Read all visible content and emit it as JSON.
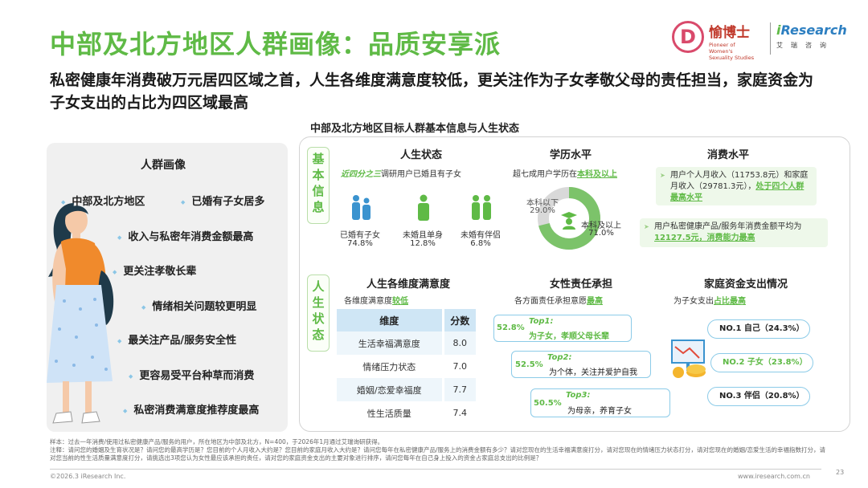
{
  "title": "中部及北方地区人群画像：品质安享派",
  "subtitle": "私密健康年消费破万元居四区域之首，人生各维度满意度较低，更关注作为子女孝敬父母的责任担当，家庭资金为子女支出的占比为四区域最高",
  "logos": {
    "partner_name": "愉博士",
    "partner_tag": "Pioneer of Women's Sexuality Studies",
    "ir_name_prefix": "i",
    "ir_name": "Research",
    "ir_cn": "艾瑞咨询"
  },
  "center_title": "中部及北方地区目标人群基本信息与人生状态",
  "left_panel": {
    "title": "人群画像",
    "region": "中部及北方地区",
    "region_tag": "已婚有子女居多",
    "items": [
      "收入与私密年消费金额最高",
      "更关注孝敬长辈",
      "情绪相关问题较更明显",
      "最关注产品/服务安全性",
      "更容易受平台种草而消费",
      "私密消费满意度推荐度最高"
    ]
  },
  "basic": {
    "tab": [
      "基",
      "本",
      "信",
      "息"
    ],
    "life_status": {
      "header": "人生状态",
      "note_em": "近四分之三",
      "note_rest": "调研用户已婚且有子女",
      "items": [
        {
          "label": "已婚有子女",
          "pct": "74.8%",
          "icon": "family-icon"
        },
        {
          "label": "未婚且单身",
          "pct": "12.8%",
          "icon": "single-person-icon"
        },
        {
          "label": "未婚有伴侣",
          "pct": "6.8%",
          "icon": "couple-icon"
        }
      ]
    },
    "education": {
      "header": "学历水平",
      "note_pre": "超七成用户学历在",
      "note_em": "本科及以上",
      "below_label": "本科以下",
      "below_pct": "29.0%",
      "above_label": "本科及以上",
      "above_pct": "71.0%",
      "colors": {
        "above": "#7cc36a",
        "below": "#d9d9d9"
      }
    },
    "consumption": {
      "header": "消费水平",
      "box1_pre": "用户个人月收入（11753.8元）和家庭月收入（29781.3元），",
      "box1_em": "处于四个人群最高水平",
      "box2_pre": "用户私密健康产品/服务年消费金额平均为",
      "box2_em": "12127.5元，消费能力最高"
    }
  },
  "life": {
    "tab": [
      "人",
      "生",
      "状",
      "态"
    ],
    "satisfaction": {
      "header": "人生各维度满意度",
      "note_pre": "各维度满意度",
      "note_em": "较低",
      "col_dim": "维度",
      "col_score": "分数",
      "rows": [
        {
          "dim": "生活幸福满意度",
          "score": "8.0"
        },
        {
          "dim": "情绪压力状态",
          "score": "7.0"
        },
        {
          "dim": "婚姻/恋爱幸福度",
          "score": "7.7"
        },
        {
          "dim": "性生活质量",
          "score": "7.4"
        }
      ]
    },
    "responsibility": {
      "header": "女性责任承担",
      "note_pre": "各方面责任承担意愿",
      "note_em": "最高",
      "tops": [
        {
          "pct": "52.8%",
          "tag": "Top1:",
          "text": "为子女，孝顺父母长辈",
          "green": true
        },
        {
          "pct": "52.5%",
          "tag": "Top2:",
          "text": "为个体，关注并爱护自我",
          "green": false
        },
        {
          "pct": "50.5%",
          "tag": "Top3:",
          "text": "为母亲，养育子女",
          "green": false
        }
      ]
    },
    "family_funds": {
      "header": "家庭资金支出情况",
      "note_pre": "为子女支出",
      "note_em": "占比最高",
      "ranks": [
        {
          "text": "NO.1  自己（24.3%）",
          "highlight": false
        },
        {
          "text": "NO.2  子女（23.8%）",
          "highlight": true
        },
        {
          "text": "NO.3  伴侣（20.8%）",
          "highlight": false
        }
      ]
    }
  },
  "footnote": "样本：过去一年消费/使用过私密健康产品/服务的用户，所在地区为中部及北方，N=400，于2026年1月通过艾瑞询研获得。\n注释：请问您的婚姻及生育状况是？请问您的最高学历是？您目前的个人月收入大约是？您目前的家庭月收入大约是？请问您每年在私密健康产品/服务上的消费金额有多少？请对您现在的生活幸福满意度打分，请对您现在的情绪压力状态打分，请对您现在的婚姻/恋爱生活的幸福指数打分，请对您当前的性生活质量满意度打分，请挑选出3项您认为女性最应该承担的责任，请对您的家庭资金支出的主要对象进行排序，请问您每年在自己身上投入的资金占家庭总支出的比例是？",
  "footer_left": "©2026.3 iResearch Inc.",
  "footer_right": "www.iresearch.com.cn",
  "page_number": "23"
}
